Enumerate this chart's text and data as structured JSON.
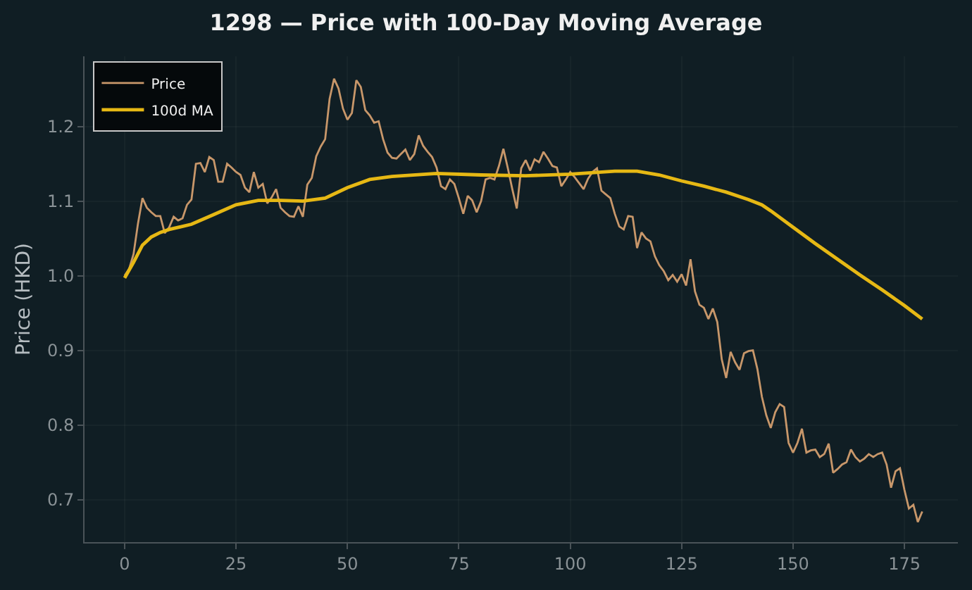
{
  "chart_data": {
    "type": "line",
    "title": "1298 — Price with 100-Day Moving Average",
    "ylabel": "Price (HKD)",
    "xlim": [
      -9,
      187
    ],
    "xticks": [
      0,
      25,
      50,
      75,
      100,
      125,
      150,
      175
    ],
    "ylim": [
      0.643,
      1.294
    ],
    "yticks": [
      {
        "value": 0.7,
        "label": "0.7"
      },
      {
        "value": 0.8,
        "label": "0.8"
      },
      {
        "value": 0.9,
        "label": "0.9"
      },
      {
        "value": 1,
        "label": "1.0"
      },
      {
        "value": 1.1,
        "label": "1.1"
      },
      {
        "value": 1.2,
        "label": "1.2"
      }
    ],
    "grid": true,
    "legend": "top left",
    "series": [
      {
        "name": "Price",
        "color": "#c8976a",
        "x": [
          0,
          1,
          2,
          3,
          4,
          5,
          6,
          7,
          8,
          9,
          10,
          11,
          12,
          13,
          14,
          15,
          16,
          17,
          18,
          19,
          20,
          21,
          22,
          23,
          24,
          25,
          26,
          27,
          28,
          29,
          30,
          31,
          32,
          33,
          34,
          35,
          36,
          37,
          38,
          39,
          40,
          41,
          42,
          43,
          44,
          45,
          46,
          47,
          48,
          49,
          50,
          51,
          52,
          53,
          54,
          55,
          56,
          57,
          58,
          59,
          60,
          61,
          62,
          63,
          64,
          65,
          66,
          67,
          68,
          69,
          70,
          71,
          72,
          73,
          74,
          75,
          76,
          77,
          78,
          79,
          80,
          81,
          82,
          83,
          84,
          85,
          86,
          87,
          88,
          89,
          90,
          91,
          92,
          93,
          94,
          95,
          96,
          97,
          98,
          99,
          100,
          101,
          102,
          103,
          104,
          105,
          106,
          107,
          108,
          109,
          110,
          111,
          112,
          113,
          114,
          115,
          116,
          117,
          118,
          119,
          120,
          121,
          122,
          123,
          124,
          125,
          126,
          127,
          128,
          129,
          130,
          131,
          132,
          133,
          134,
          135,
          136,
          137,
          138,
          139,
          140,
          141,
          142,
          143,
          144,
          145,
          146,
          147,
          148,
          149,
          150,
          151,
          152,
          153,
          154,
          155,
          156,
          157,
          158,
          159,
          160,
          161,
          162,
          163,
          164,
          165,
          166,
          167,
          168,
          169,
          170,
          171,
          172,
          173,
          174,
          175,
          176,
          177,
          178,
          179
        ],
        "values": [
          1.0,
          1.009,
          1.029,
          1.07,
          1.104,
          1.091,
          1.085,
          1.08,
          1.08,
          1.057,
          1.065,
          1.079,
          1.074,
          1.077,
          1.095,
          1.102,
          1.15,
          1.151,
          1.139,
          1.159,
          1.155,
          1.126,
          1.126,
          1.15,
          1.145,
          1.139,
          1.135,
          1.118,
          1.112,
          1.139,
          1.118,
          1.123,
          1.097,
          1.105,
          1.116,
          1.091,
          1.085,
          1.08,
          1.079,
          1.093,
          1.079,
          1.122,
          1.131,
          1.16,
          1.173,
          1.183,
          1.237,
          1.264,
          1.251,
          1.224,
          1.209,
          1.218,
          1.262,
          1.253,
          1.222,
          1.215,
          1.205,
          1.207,
          1.183,
          1.165,
          1.158,
          1.157,
          1.163,
          1.169,
          1.155,
          1.163,
          1.188,
          1.174,
          1.166,
          1.159,
          1.145,
          1.12,
          1.116,
          1.129,
          1.123,
          1.104,
          1.083,
          1.107,
          1.101,
          1.085,
          1.1,
          1.129,
          1.131,
          1.129,
          1.147,
          1.17,
          1.144,
          1.116,
          1.09,
          1.144,
          1.155,
          1.141,
          1.156,
          1.152,
          1.166,
          1.157,
          1.147,
          1.145,
          1.12,
          1.129,
          1.139,
          1.132,
          1.124,
          1.116,
          1.13,
          1.139,
          1.144,
          1.114,
          1.109,
          1.104,
          1.083,
          1.066,
          1.062,
          1.08,
          1.079,
          1.037,
          1.058,
          1.05,
          1.046,
          1.026,
          1.014,
          1.006,
          0.994,
          1.001,
          0.992,
          1.002,
          0.987,
          1.022,
          0.979,
          0.961,
          0.957,
          0.942,
          0.956,
          0.938,
          0.888,
          0.863,
          0.898,
          0.884,
          0.874,
          0.896,
          0.899,
          0.9,
          0.875,
          0.838,
          0.813,
          0.796,
          0.817,
          0.828,
          0.824,
          0.776,
          0.763,
          0.776,
          0.795,
          0.763,
          0.766,
          0.767,
          0.757,
          0.761,
          0.775,
          0.736,
          0.741,
          0.747,
          0.75,
          0.767,
          0.757,
          0.751,
          0.755,
          0.761,
          0.757,
          0.761,
          0.763,
          0.747,
          0.716,
          0.738,
          0.742,
          0.713,
          0.688,
          0.693,
          0.67,
          0.684
        ]
      },
      {
        "name": "100d MA",
        "color": "#e6b814",
        "x": [
          0,
          2,
          4,
          6,
          8,
          10,
          15,
          20,
          25,
          30,
          35,
          40,
          45,
          50,
          55,
          60,
          70,
          80,
          90,
          100,
          110,
          115,
          120,
          125,
          130,
          135,
          140,
          143,
          145,
          150,
          155,
          160,
          165,
          170,
          175,
          179
        ],
        "values": [
          0.997,
          1.018,
          1.041,
          1.052,
          1.058,
          1.062,
          1.069,
          1.082,
          1.095,
          1.101,
          1.101,
          1.1,
          1.104,
          1.118,
          1.129,
          1.133,
          1.137,
          1.135,
          1.134,
          1.136,
          1.14,
          1.14,
          1.135,
          1.127,
          1.12,
          1.112,
          1.102,
          1.095,
          1.087,
          1.065,
          1.043,
          1.022,
          1.001,
          0.981,
          0.96,
          0.942
        ]
      }
    ]
  }
}
